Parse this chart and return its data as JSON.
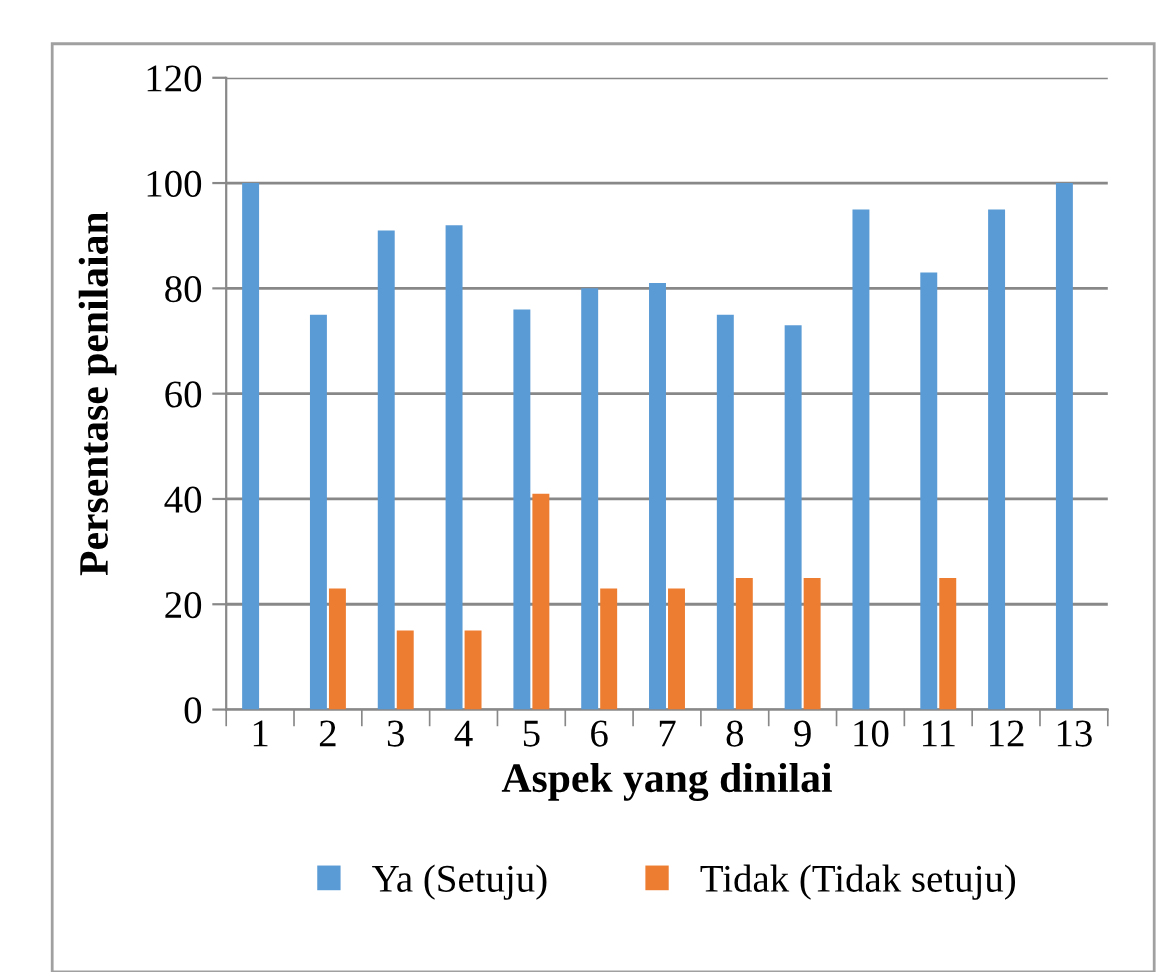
{
  "chart_data": {
    "type": "bar",
    "xlabel": "Aspek yang dinilai",
    "ylabel": "Persentase penilaian",
    "categories": [
      "1",
      "2",
      "3",
      "4",
      "5",
      "6",
      "7",
      "8",
      "9",
      "10",
      "11",
      "12",
      "13"
    ],
    "series": [
      {
        "name": "Ya (Setuju)",
        "color": "#5b9bd5",
        "values": [
          100,
          75,
          91,
          92,
          76,
          80,
          81,
          75,
          73,
          95,
          83,
          95,
          100
        ]
      },
      {
        "name": "Tidak (Tidak setuju)",
        "color": "#ed7d31",
        "values": [
          0,
          23,
          15,
          15,
          41,
          23,
          23,
          25,
          25,
          0,
          25,
          0,
          0
        ]
      }
    ],
    "ylim": [
      0,
      120
    ],
    "yticks": [
      0,
      20,
      40,
      60,
      80,
      100,
      120
    ],
    "grid": "y",
    "legend": "bottom"
  }
}
